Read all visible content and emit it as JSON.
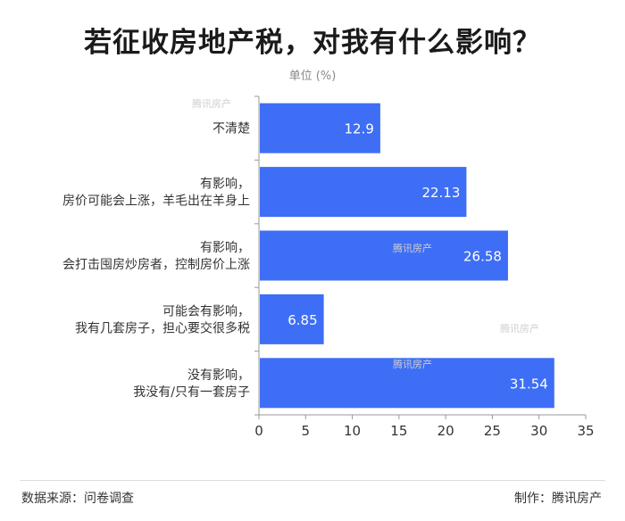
{
  "title": "若征收房地产税，对我有什么影响？",
  "unit": "单位  (%)",
  "footer": {
    "source": "数据来源：问卷调查",
    "credit": "制作：腾讯房产"
  },
  "watermark": "腾讯房产",
  "colors": {
    "bar": "#3d6ef5",
    "axis": "#999999",
    "grid": "#e5e5e5"
  },
  "chart_data": {
    "type": "bar",
    "orientation": "horizontal",
    "categories": [
      [
        "不清楚"
      ],
      [
        "有影响，",
        "房价可能会上涨，羊毛出在羊身上"
      ],
      [
        "有影响，",
        "会打击囤房炒房者，控制房价上涨"
      ],
      [
        "可能会有影响，",
        "我有几套房子，担心要交很多税"
      ],
      [
        "没有影响，",
        "我没有/只有一套房子"
      ]
    ],
    "values": [
      12.9,
      22.13,
      26.58,
      6.85,
      31.54
    ],
    "value_labels": [
      "12.9",
      "22.13",
      "26.58",
      "6.85",
      "31.54"
    ],
    "xlim": [
      0,
      35
    ],
    "xticks": [
      0,
      5,
      10,
      15,
      20,
      25,
      30,
      35
    ],
    "grid": false
  }
}
